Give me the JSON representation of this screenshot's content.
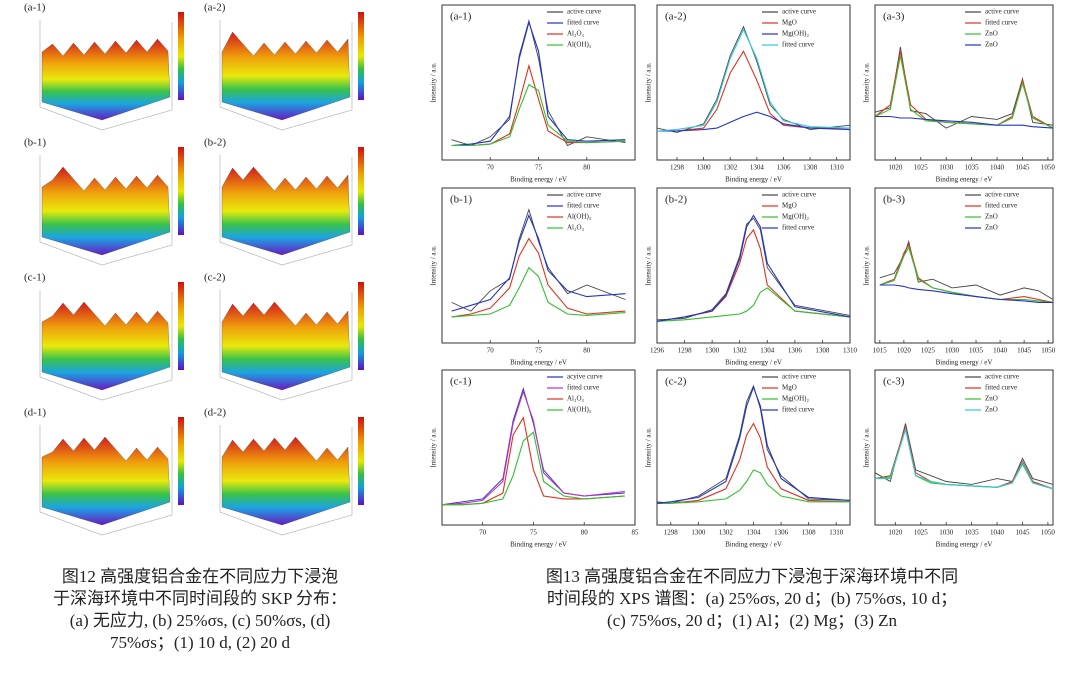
{
  "skp_figure": {
    "panels": [
      "(a-1)",
      "(a-2)",
      "(b-1)",
      "(b-2)",
      "(c-1)",
      "(c-2)",
      "(d-1)",
      "(d-2)"
    ],
    "caption": [
      "图12 高强度铝合金在不同应力下浸泡",
      "于深海环境中不同时间段的 SKP 分布：",
      "(a) 无应力, (b) 25%σs, (c) 50%σs, (d)",
      "75%σs；(1) 10 d, (2) 20 d"
    ]
  },
  "xps_figure": {
    "caption": [
      "图13 高强度铝合金在不同应力下浸泡于深海环境中不同",
      "时间段的 XPS 谱图：(a) 25%σs, 20 d；(b) 75%σs, 10 d；",
      "(c) 75%σs, 20 d；(1) Al；(2) Mg；(3) Zn"
    ],
    "panels": [
      {
        "type": "line",
        "label": "(a-1)",
        "xlabel": "Binding energy / eV",
        "ylabel": "Intensity / a.u.",
        "xlim": [
          65,
          85
        ],
        "ylim": [
          0,
          100
        ],
        "xticks": [
          70,
          75,
          80
        ],
        "x": [
          66,
          68,
          70,
          72,
          73,
          74,
          75,
          76,
          78,
          80,
          84
        ],
        "series": [
          {
            "name": "active curve",
            "color": "#444444",
            "values": [
              14,
              10,
              16,
              28,
              72,
              96,
              70,
              34,
              10,
              16,
              12
            ]
          },
          {
            "name": "fitted curve",
            "color": "#2233cc",
            "values": [
              10,
              11,
              13,
              30,
              70,
              95,
              75,
              30,
              14,
              13,
              14
            ]
          },
          {
            "name": "Al₂O₃",
            "color": "#e03020",
            "values": [
              10,
              10,
              11,
              18,
              40,
              65,
              42,
              20,
              12,
              12,
              13
            ]
          },
          {
            "name": "Al(OH)₃",
            "color": "#30c030",
            "values": [
              10,
              10,
              11,
              16,
              35,
              52,
              48,
              24,
              13,
              12,
              13
            ]
          }
        ]
      },
      {
        "type": "line",
        "label": "(a-2)",
        "xlabel": "Binding energy / eV",
        "ylabel": "Intensity / a.u.",
        "xlim": [
          1296.5,
          1311
        ],
        "ylim": [
          0,
          100
        ],
        "xticks": [
          1298,
          1300,
          1302,
          1304,
          1306,
          1308,
          1310
        ],
        "x": [
          1296.5,
          1298,
          1300,
          1301,
          1302,
          1303,
          1304,
          1305,
          1306,
          1308,
          1311
        ],
        "series": [
          {
            "name": "active curve",
            "color": "#444444",
            "values": [
              22,
              19,
              25,
              42,
              72,
              92,
              68,
              38,
              28,
              21,
              24
            ]
          },
          {
            "name": "MgO",
            "color": "#e03020",
            "values": [
              20,
              20,
              22,
              35,
              60,
              75,
              55,
              32,
              24,
              22,
              22
            ]
          },
          {
            "name": "Mg(OH)₂",
            "color": "#2233cc",
            "values": [
              20,
              20,
              21,
              22,
              26,
              30,
              33,
              30,
              25,
              22,
              21
            ]
          },
          {
            "name": "fitted curve",
            "color": "#30c8d8",
            "values": [
              20,
              21,
              24,
              40,
              70,
              90,
              70,
              40,
              27,
              23,
              22
            ]
          }
        ]
      },
      {
        "type": "line",
        "label": "(a-3)",
        "xlabel": "Binding energy / eV",
        "ylabel": "Intensity / a.u.",
        "xlim": [
          1016,
          1051
        ],
        "ylim": [
          0,
          100
        ],
        "xticks": [
          1020,
          1025,
          1030,
          1035,
          1040,
          1045,
          1050
        ],
        "x": [
          1016,
          1019,
          1021,
          1023,
          1026,
          1030,
          1035,
          1040,
          1043,
          1045,
          1047,
          1051
        ],
        "series": [
          {
            "name": "active curve",
            "color": "#444444",
            "values": [
              33,
              36,
              78,
              34,
              32,
              22,
              30,
              28,
              32,
              56,
              26,
              24
            ]
          },
          {
            "name": "fitted curve",
            "color": "#e03020",
            "values": [
              30,
              38,
              75,
              38,
              28,
              26,
              25,
              24,
              30,
              55,
              30,
              22
            ]
          },
          {
            "name": "ZnO",
            "color": "#30c030",
            "values": [
              30,
              35,
              72,
              35,
              27,
              26,
              25,
              24,
              29,
              53,
              29,
              22
            ]
          },
          {
            "name": "ZnO",
            "color": "#2233cc",
            "values": [
              30,
              30,
              29,
              29,
              28,
              27,
              26,
              24,
              24,
              24,
              23,
              22
            ]
          }
        ]
      },
      {
        "type": "line",
        "label": "(b-1)",
        "xlabel": "Binding energy / eV",
        "ylabel": "Intensity / a.u.",
        "xlim": [
          65,
          85
        ],
        "ylim": [
          0,
          100
        ],
        "xticks": [
          70,
          75,
          80
        ],
        "x": [
          66,
          68,
          70,
          72,
          73,
          74,
          75,
          76,
          78,
          80,
          84
        ],
        "series": [
          {
            "name": "active curve",
            "color": "#444444",
            "values": [
              28,
              22,
              36,
              44,
              72,
              92,
              70,
              52,
              34,
              40,
              30
            ]
          },
          {
            "name": "fitted curve",
            "color": "#2233cc",
            "values": [
              22,
              26,
              30,
              45,
              70,
              88,
              72,
              50,
              36,
              32,
              34
            ]
          },
          {
            "name": "Al(OH)₃",
            "color": "#e03020",
            "values": [
              18,
              20,
              24,
              38,
              60,
              72,
              62,
              40,
              24,
              20,
              22
            ]
          },
          {
            "name": "Al₂O₃",
            "color": "#30c030",
            "values": [
              18,
              19,
              20,
              26,
              38,
              52,
              46,
              28,
              20,
              19,
              21
            ]
          }
        ]
      },
      {
        "type": "line",
        "label": "(b-2)",
        "xlabel": "Binding energy / eV",
        "ylabel": "Intensity / a.u.",
        "xlim": [
          1296,
          1310
        ],
        "ylim": [
          0,
          100
        ],
        "xticks": [
          1296,
          1298,
          1300,
          1302,
          1304,
          1306,
          1308,
          1310
        ],
        "x": [
          1296,
          1298,
          1300,
          1301,
          1302,
          1302.5,
          1303,
          1303.5,
          1304,
          1306,
          1310
        ],
        "series": [
          {
            "name": "active curve",
            "color": "#444444",
            "values": [
              16,
              17,
              23,
              34,
              60,
              82,
              86,
              78,
              52,
              26,
              19
            ]
          },
          {
            "name": "MgO",
            "color": "#e03020",
            "values": [
              15,
              18,
              22,
              32,
              55,
              72,
              78,
              65,
              40,
              22,
              18
            ]
          },
          {
            "name": "Mg(OH)₂",
            "color": "#30c030",
            "values": [
              15,
              16,
              18,
              19,
              20,
              22,
              26,
              35,
              38,
              22,
              18
            ]
          },
          {
            "name": "fitted curve",
            "color": "#2233cc",
            "values": [
              15,
              18,
              22,
              33,
              58,
              80,
              88,
              80,
              55,
              25,
              18
            ]
          }
        ]
      },
      {
        "type": "line",
        "label": "(b-3)",
        "xlabel": "Binding energy / eV",
        "ylabel": "Intensity / a.u.",
        "xlim": [
          1014,
          1051
        ],
        "ylim": [
          0,
          100
        ],
        "xticks": [
          1015,
          1020,
          1025,
          1030,
          1035,
          1040,
          1045,
          1050
        ],
        "x": [
          1015,
          1018,
          1020,
          1021,
          1023,
          1026,
          1030,
          1035,
          1040,
          1045,
          1048,
          1051
        ],
        "series": [
          {
            "name": "active curve",
            "color": "#444444",
            "values": [
              45,
              48,
              60,
              70,
              42,
              44,
              38,
              40,
              33,
              38,
              36,
              30
            ]
          },
          {
            "name": "fitted curve",
            "color": "#e03020",
            "values": [
              40,
              44,
              62,
              68,
              45,
              38,
              35,
              32,
              30,
              32,
              30,
              28
            ]
          },
          {
            "name": "ZnO",
            "color": "#30c030",
            "values": [
              40,
              43,
              60,
              66,
              44,
              38,
              35,
              32,
              30,
              30,
              29,
              28
            ]
          },
          {
            "name": "ZnO",
            "color": "#2233cc",
            "values": [
              40,
              40,
              39,
              38,
              37,
              36,
              34,
              32,
              30,
              29,
              28,
              28
            ]
          }
        ]
      },
      {
        "type": "line",
        "label": "(c-1)",
        "xlabel": "Binding energy / eV",
        "ylabel": "Intensity / a.u.",
        "xlim": [
          66,
          85
        ],
        "ylim": [
          0,
          100
        ],
        "xticks": [
          70,
          75,
          80,
          85
        ],
        "x": [
          66,
          68,
          70,
          72,
          73,
          74,
          75,
          76,
          78,
          80,
          84
        ],
        "series": [
          {
            "name": "acyive curve",
            "color": "#2233cc",
            "values": [
              14,
              16,
              18,
              32,
              72,
              94,
              70,
              38,
              22,
              20,
              22
            ]
          },
          {
            "name": "fitted curve",
            "color": "#c030c0",
            "values": [
              14,
              15,
              17,
              30,
              70,
              92,
              72,
              36,
              22,
              20,
              23
            ]
          },
          {
            "name": "Al₂O₃",
            "color": "#e03020",
            "values": [
              14,
              14,
              15,
              22,
              62,
              74,
              38,
              20,
              18,
              18,
              20
            ]
          },
          {
            "name": "Al(OH)₃",
            "color": "#30c030",
            "values": [
              14,
              14,
              15,
              18,
              34,
              58,
              64,
              30,
              20,
              18,
              20
            ]
          }
        ]
      },
      {
        "type": "line",
        "label": "(c-2)",
        "xlabel": "Binding energy / eV",
        "ylabel": "Intensity / a.u.",
        "xlim": [
          1297,
          1311
        ],
        "ylim": [
          0,
          100
        ],
        "xticks": [
          1298,
          1300,
          1302,
          1304,
          1306,
          1308,
          1310
        ],
        "x": [
          1297,
          1298,
          1300,
          1302,
          1303,
          1303.5,
          1304,
          1304.5,
          1305,
          1306,
          1308,
          1311
        ],
        "series": [
          {
            "name": "active curve",
            "color": "#444444",
            "values": [
              16,
              15,
              20,
              32,
              62,
              85,
              96,
              80,
              52,
              34,
              18,
              17
            ]
          },
          {
            "name": "MgO",
            "color": "#e03020",
            "values": [
              15,
              15,
              17,
              25,
              45,
              62,
              70,
              60,
              40,
              25,
              17,
              16
            ]
          },
          {
            "name": "Mg(OH)₂",
            "color": "#30c030",
            "values": [
              15,
              15,
              16,
              18,
              24,
              30,
              38,
              36,
              28,
              20,
              16,
              16
            ]
          },
          {
            "name": "fitted curve",
            "color": "#2233cc",
            "values": [
              15,
              16,
              19,
              30,
              60,
              82,
              95,
              82,
              55,
              32,
              19,
              17
            ]
          }
        ]
      },
      {
        "type": "line",
        "label": "(c-3)",
        "xlabel": "Binding energy / eV",
        "ylabel": "Intensity / a.u.",
        "xlim": [
          1016,
          1051
        ],
        "ylim": [
          0,
          100
        ],
        "xticks": [
          1020,
          1025,
          1030,
          1035,
          1040,
          1045,
          1050
        ],
        "x": [
          1016,
          1019,
          1022,
          1024,
          1027,
          1030,
          1035,
          1040,
          1043,
          1045,
          1047,
          1051
        ],
        "series": [
          {
            "name": "active curve",
            "color": "#444444",
            "values": [
              36,
              30,
              70,
              38,
              34,
              30,
              28,
              32,
              30,
              46,
              32,
              28
            ]
          },
          {
            "name": "fitted curve",
            "color": "#e03020",
            "values": [
              32,
              34,
              68,
              36,
              30,
              28,
              27,
              26,
              30,
              44,
              30,
              25
            ]
          },
          {
            "name": "ZnO",
            "color": "#30c030",
            "values": [
              32,
              33,
              66,
              34,
              29,
              28,
              27,
              26,
              29,
              42,
              29,
              25
            ]
          },
          {
            "name": "ZnO",
            "color": "#30c8d8",
            "values": [
              32,
              32,
              66,
              34,
              30,
              28,
              27,
              26,
              29,
              43,
              29,
              25
            ]
          }
        ]
      }
    ]
  }
}
